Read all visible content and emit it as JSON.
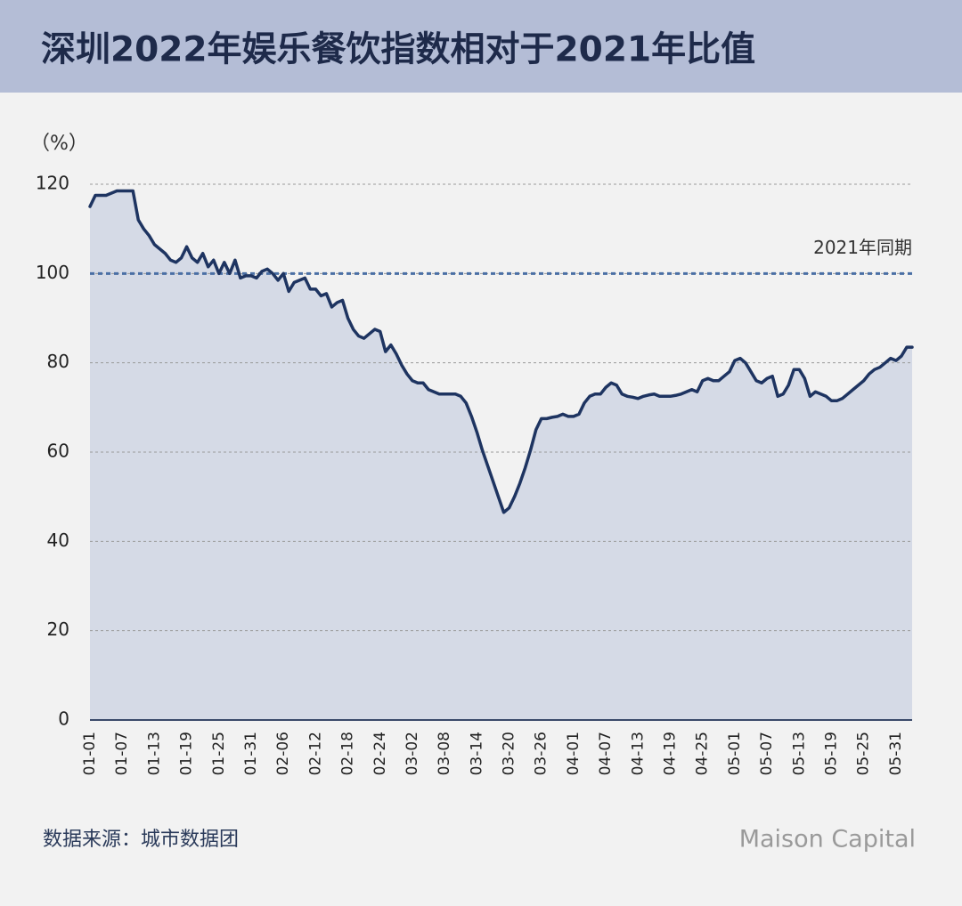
{
  "chart_data": {
    "type": "area",
    "title": "深圳2022年娱乐餐饮指数相对于2021年比值",
    "y_label": "（%）",
    "source": "数据来源：城市数据团",
    "brand": "Maison Capital",
    "reference": {
      "value": 100,
      "label": "2021年同期"
    },
    "categories": [
      "01-01",
      null,
      null,
      null,
      null,
      null,
      "01-07",
      null,
      null,
      null,
      null,
      null,
      "01-13",
      null,
      null,
      null,
      null,
      null,
      "01-19",
      null,
      null,
      null,
      null,
      null,
      "01-25",
      null,
      null,
      null,
      null,
      null,
      "01-31",
      null,
      null,
      null,
      null,
      null,
      "02-06",
      null,
      null,
      null,
      null,
      null,
      "02-12",
      null,
      null,
      null,
      null,
      null,
      "02-18",
      null,
      null,
      null,
      null,
      null,
      "02-24",
      null,
      null,
      null,
      null,
      null,
      "03-02",
      null,
      null,
      null,
      null,
      null,
      "03-08",
      null,
      null,
      null,
      null,
      null,
      "03-14",
      null,
      null,
      null,
      null,
      null,
      "03-20",
      null,
      null,
      null,
      null,
      null,
      "03-26",
      null,
      null,
      null,
      null,
      null,
      "04-01",
      null,
      null,
      null,
      null,
      null,
      "04-07",
      null,
      null,
      null,
      null,
      null,
      "04-13",
      null,
      null,
      null,
      null,
      null,
      "04-19",
      null,
      null,
      null,
      null,
      null,
      "04-25",
      null,
      null,
      null,
      null,
      null,
      "05-01",
      null,
      null,
      null,
      null,
      null,
      "05-07",
      null,
      null,
      null,
      null,
      null,
      "05-13",
      null,
      null,
      null,
      null,
      null,
      "05-19",
      null,
      null,
      null,
      null,
      null,
      "05-25",
      null,
      null,
      null,
      null,
      null,
      "05-31",
      null,
      null,
      null
    ],
    "values": [
      115,
      117.5,
      117.5,
      117.5,
      118,
      118.5,
      118.5,
      118.5,
      118.5,
      112,
      110,
      108.5,
      106.5,
      105.5,
      104.5,
      103,
      102.5,
      103.5,
      106,
      103.5,
      102.5,
      104.5,
      101.5,
      103,
      100,
      102.5,
      100,
      103,
      99,
      99.5,
      99.5,
      99,
      100.5,
      101,
      100,
      98.5,
      100,
      96,
      98,
      98.5,
      99,
      96.5,
      96.5,
      95,
      95.5,
      92.5,
      93.5,
      94,
      90,
      87.5,
      86,
      85.5,
      86.5,
      87.5,
      87,
      82.5,
      84,
      82,
      79.5,
      77.5,
      76,
      75.5,
      75.5,
      74,
      73.5,
      73,
      73,
      73,
      73,
      72.5,
      71,
      68,
      64.5,
      60.5,
      57,
      53.5,
      50,
      46.5,
      47.5,
      50,
      53,
      56.5,
      60.5,
      65,
      67.5,
      67.5,
      67.8,
      68,
      68.5,
      68,
      68,
      68.5,
      71,
      72.5,
      73,
      73,
      74.5,
      75.5,
      75,
      73,
      72.5,
      72.3,
      72,
      72.5,
      72.8,
      73,
      72.5,
      72.5,
      72.5,
      72.7,
      73,
      73.5,
      74,
      73.5,
      76,
      76.5,
      76,
      76,
      77,
      78,
      80.5,
      81,
      80,
      78,
      76,
      75.5,
      76.5,
      77,
      72.5,
      73,
      75,
      78.5,
      78.5,
      76.5,
      72.5,
      73.5,
      73,
      72.5,
      71.5,
      71.5,
      72,
      73,
      74,
      75,
      76,
      77.5,
      78.5,
      79,
      80,
      81,
      80.5,
      81.5,
      83.5,
      83.5
    ],
    "color": "#1e3461",
    "fill": "#d5dae6",
    "reference_color": "#4a6fa5",
    "ylim": [
      0,
      120
    ],
    "yticks": [
      0,
      20,
      40,
      60,
      80,
      100,
      120
    ],
    "grid": true
  }
}
